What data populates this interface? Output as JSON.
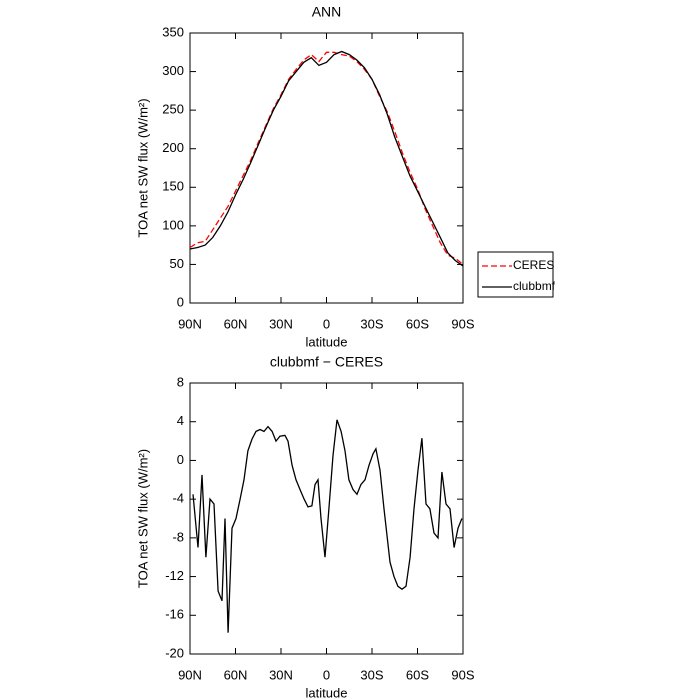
{
  "chart_data": [
    {
      "type": "line",
      "title": "ANN",
      "xlabel": "latitude",
      "ylabel": "TOA net SW flux (W/m²)",
      "x": [
        90,
        85,
        80,
        75,
        70,
        65,
        60,
        55,
        50,
        45,
        40,
        35,
        30,
        25,
        20,
        15,
        10,
        5,
        0,
        -5,
        -10,
        -15,
        -20,
        -25,
        -30,
        -35,
        -40,
        -45,
        -50,
        -55,
        -60,
        -65,
        -70,
        -75,
        -80,
        -85,
        -90
      ],
      "series": [
        {
          "name": "CERES",
          "color": "#ff0000",
          "dash": true,
          "values": [
            72,
            78,
            80,
            95,
            110,
            125,
            145,
            165,
            185,
            208,
            230,
            252,
            270,
            290,
            303,
            315,
            322,
            313,
            325,
            325,
            322,
            320,
            313,
            303,
            290,
            268,
            248,
            222,
            195,
            170,
            148,
            122,
            100,
            78,
            62,
            58,
            50
          ]
        },
        {
          "name": "clubbmf",
          "color": "#000000",
          "dash": false,
          "values": [
            70,
            72,
            75,
            85,
            100,
            118,
            140,
            160,
            182,
            205,
            228,
            250,
            268,
            288,
            300,
            312,
            318,
            308,
            312,
            322,
            326,
            322,
            315,
            305,
            290,
            270,
            245,
            215,
            190,
            165,
            145,
            125,
            105,
            85,
            65,
            55,
            48
          ]
        }
      ],
      "xlim": [
        90,
        -90
      ],
      "xticks": [
        {
          "value": 90,
          "label": "90N"
        },
        {
          "value": 60,
          "label": "60N"
        },
        {
          "value": 30,
          "label": "30N"
        },
        0,
        {
          "value": -30,
          "label": "30S"
        },
        {
          "value": -60,
          "label": "60S"
        },
        {
          "value": -90,
          "label": "90S"
        }
      ],
      "ylim": [
        0,
        350
      ],
      "yticks": [
        0,
        50,
        100,
        150,
        200,
        250,
        300,
        350
      ],
      "legend": "right"
    },
    {
      "type": "line",
      "title": "clubbmf − CERES",
      "xlabel": "latitude",
      "ylabel": "TOA net SW flux (W/m²)",
      "x": [
        88.0,
        84.7,
        82.1,
        79.5,
        76.8,
        74.2,
        71.5,
        68.9,
        66.9,
        64.9,
        62.3,
        59.7,
        57.0,
        54.4,
        51.8,
        49.1,
        46.5,
        43.8,
        41.2,
        38.6,
        35.9,
        33.3,
        30.7,
        27.4,
        25.4,
        22.7,
        20.1,
        17.5,
        14.8,
        12.2,
        9.6,
        7.6,
        5.6,
        3.6,
        1.0,
        -1.6,
        -4.3,
        -6.9,
        -9.6,
        -12.2,
        -14.8,
        -17.5,
        -20.1,
        -22.7,
        -25.4,
        -28.0,
        -30.7,
        -32.6,
        -35.3,
        -37.9,
        -41.9,
        -44.5,
        -47.1,
        -49.8,
        -52.4,
        -55.1,
        -57.7,
        -60.3,
        -62.9,
        -65.6,
        -68.2,
        -70.9,
        -73.5,
        -76.1,
        -78.8,
        -81.4,
        -84.1,
        -86.7,
        -89.3
      ],
      "series": [
        {
          "name": "clubbmf − CERES",
          "color": "#000000",
          "dash": false,
          "values": [
            -3.5,
            -9,
            -1.5,
            -10,
            -4,
            -4.5,
            -13.5,
            -14.5,
            -6,
            -17.8,
            -7,
            -6,
            -4,
            -2,
            1,
            2.2,
            3,
            3.2,
            3,
            3.5,
            3,
            2,
            2.5,
            2.6,
            2,
            -0.5,
            -2,
            -3,
            -4,
            -4.8,
            -4.7,
            -2.5,
            -2,
            -6,
            -10,
            -5,
            0.5,
            4.2,
            3,
            1,
            -2,
            -3,
            -3.5,
            -2.5,
            -2,
            -0.5,
            0.7,
            1.2,
            -1,
            -5,
            -10.5,
            -12,
            -13,
            -13.3,
            -13,
            -10,
            -5,
            -1,
            2.3,
            -4.5,
            -5,
            -7.5,
            -8,
            -1.2,
            -4.5,
            -5,
            -9,
            -7,
            -6
          ]
        }
      ],
      "xlim": [
        90,
        -90
      ],
      "xticks": [
        {
          "value": 90,
          "label": "90N"
        },
        {
          "value": 60,
          "label": "60N"
        },
        {
          "value": 30,
          "label": "30N"
        },
        0,
        {
          "value": -30,
          "label": "30S"
        },
        {
          "value": -60,
          "label": "60S"
        },
        {
          "value": -90,
          "label": "90S"
        }
      ],
      "ylim": [
        -20,
        8
      ],
      "yticks": [
        -20,
        -16,
        -12,
        -8,
        -4,
        0,
        4,
        8
      ]
    }
  ]
}
